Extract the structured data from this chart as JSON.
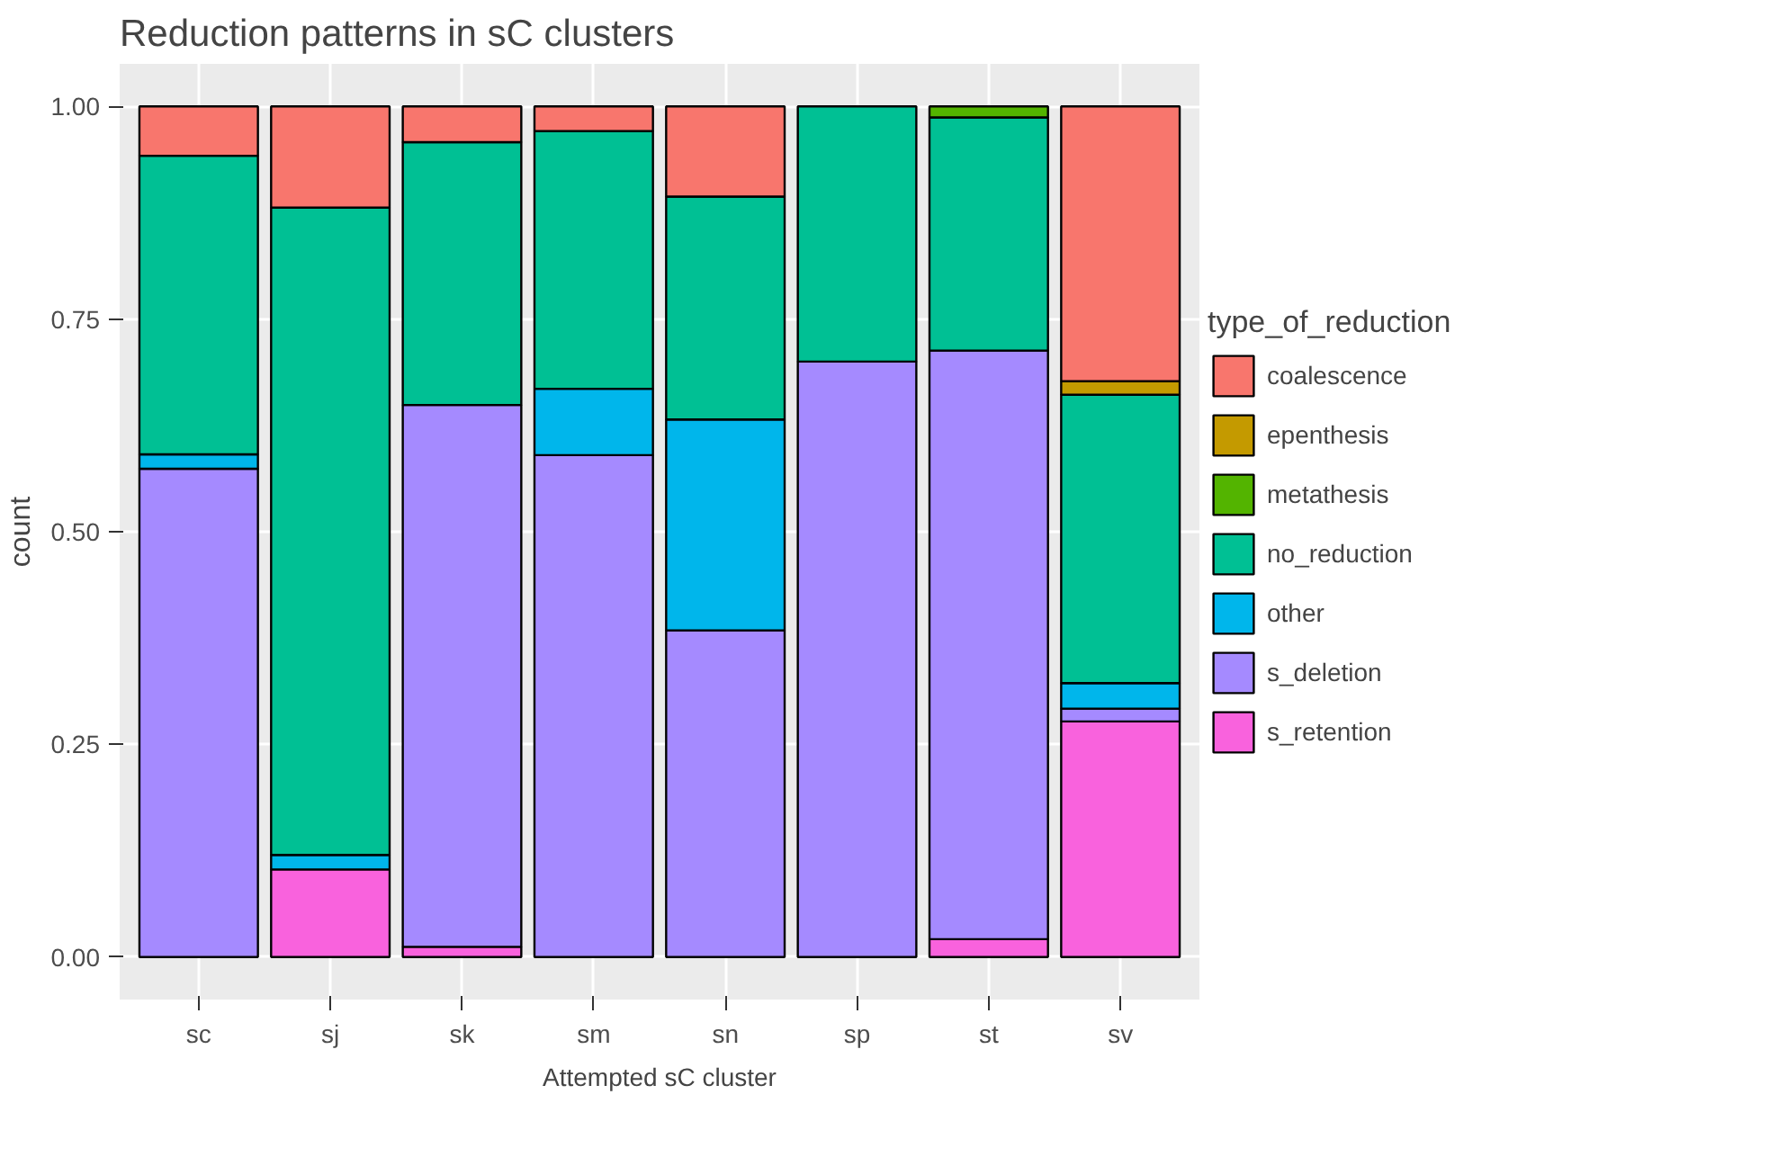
{
  "chart_data": {
    "type": "bar",
    "title": "Reduction patterns in sC clusters",
    "xlabel": "Attempted sC cluster",
    "ylabel": "count",
    "legend_title": "type_of_reduction",
    "categories": [
      "sc",
      "sj",
      "sk",
      "sm",
      "sn",
      "sp",
      "st",
      "sv"
    ],
    "stacked": true,
    "ylim": [
      -0.05,
      1.05
    ],
    "yticks": [
      {
        "value": 0,
        "label": "0.00"
      },
      {
        "value": 0.25,
        "label": "0.25"
      },
      {
        "value": 0.5,
        "label": "0.50"
      },
      {
        "value": 0.75,
        "label": "0.75"
      },
      {
        "value": 1,
        "label": "1.00"
      }
    ],
    "grid": true,
    "legend": "right",
    "series": [
      {
        "name": "s_retention",
        "color": "#f962dd",
        "values": [
          null,
          0.103,
          0.012,
          null,
          null,
          null,
          0.021,
          0.277
        ]
      },
      {
        "name": "s_deletion",
        "color": "#a58aff",
        "values": [
          0.574,
          null,
          0.637,
          0.59,
          0.384,
          0.7,
          0.692,
          0.015
        ]
      },
      {
        "name": "other",
        "color": "#00b6eb",
        "values": [
          0.017,
          0.017,
          null,
          0.078,
          0.248,
          null,
          null,
          0.03
        ]
      },
      {
        "name": "no_reduction",
        "color": "#00c094",
        "values": [
          0.351,
          0.761,
          0.309,
          0.303,
          0.262,
          0.3,
          0.274,
          0.339
        ]
      },
      {
        "name": "metathesis",
        "color": "#53b400",
        "values": [
          null,
          null,
          null,
          null,
          null,
          null,
          0.013,
          null
        ]
      },
      {
        "name": "epenthesis",
        "color": "#c49a00",
        "values": [
          null,
          null,
          null,
          null,
          null,
          null,
          null,
          0.016
        ]
      },
      {
        "name": "coalescence",
        "color": "#f8766d",
        "values": [
          0.058,
          0.119,
          0.042,
          0.029,
          0.106,
          null,
          null,
          0.323
        ]
      }
    ]
  }
}
